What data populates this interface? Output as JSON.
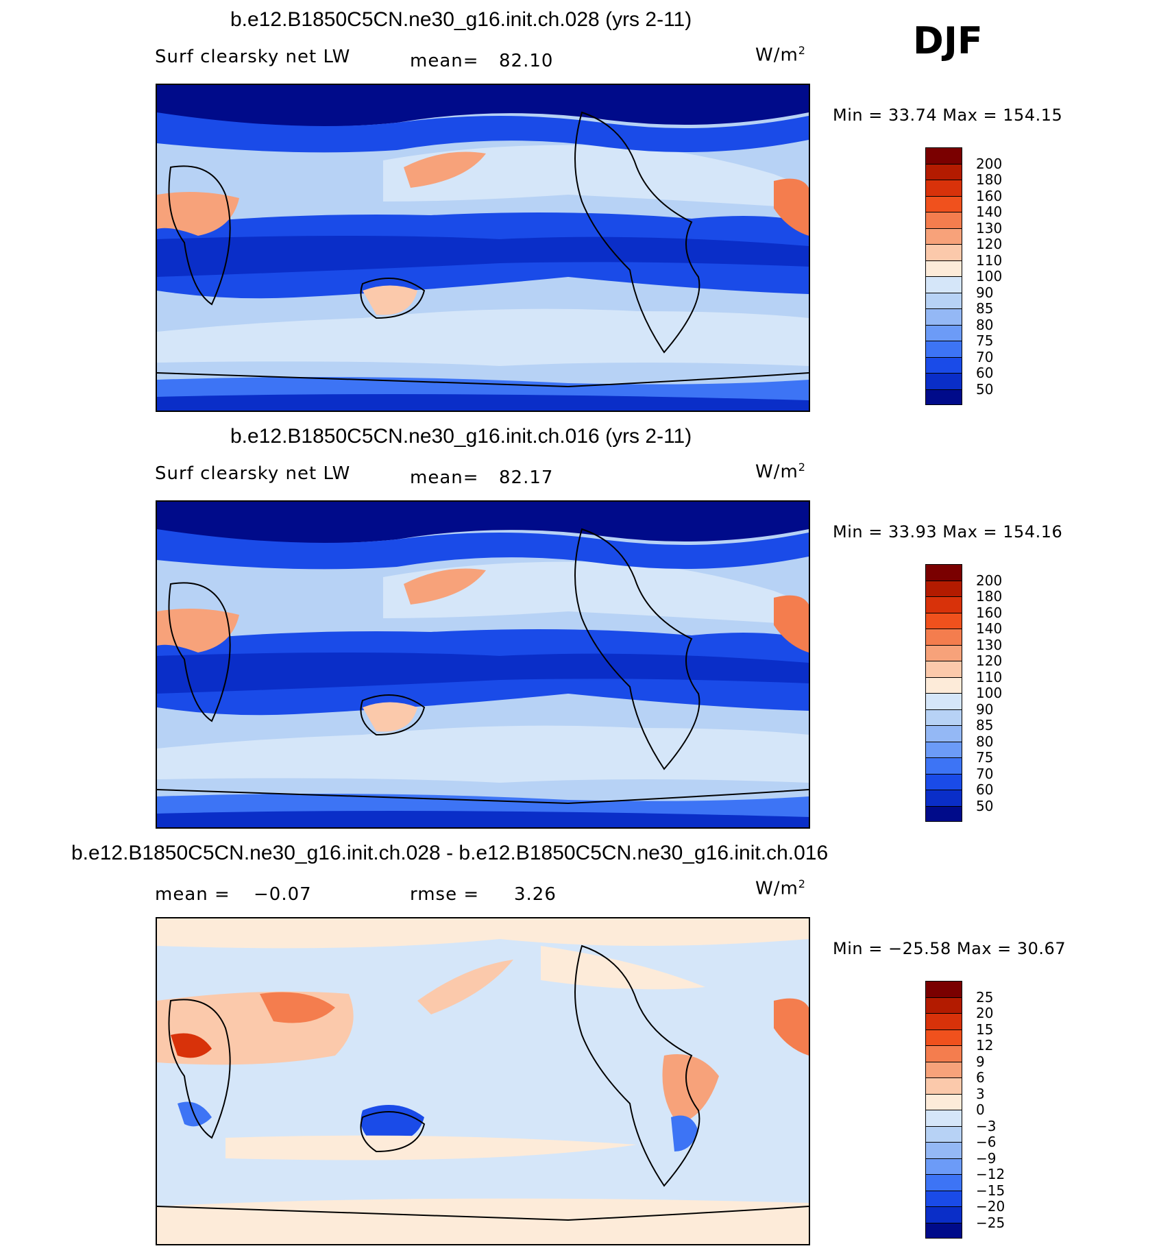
{
  "season": "DJF",
  "units_label": "W/m",
  "units_exp": "2",
  "panels": [
    {
      "title": "b.e12.B1850C5CN.ne30_g16.init.ch.028 (yrs 2-11)",
      "variable": "Surf clearsky net LW",
      "stat_label": "mean=",
      "stat_value": "82.10",
      "minmax": "Min =   33.74 Max = 154.15"
    },
    {
      "title": "b.e12.B1850C5CN.ne30_g16.init.ch.016 (yrs 2-11)",
      "variable": "Surf clearsky net LW",
      "stat_label": "mean=",
      "stat_value": "82.17",
      "minmax": "Min =   33.93 Max = 154.16"
    },
    {
      "title": "b.e12.B1850C5CN.ne30_g16.init.ch.028 - b.e12.B1850C5CN.ne30_g16.init.ch.016",
      "variable": "mean =",
      "variable_value": "−0.07",
      "stat_label": "rmse =",
      "stat_value": "3.26",
      "minmax": "Min = −25.58 Max =   30.67"
    }
  ],
  "chart_data": [
    {
      "type": "heatmap",
      "title": "b.e12.B1850C5CN.ne30_g16.init.ch.028 (yrs 2-11)",
      "field": "Surf clearsky net LW",
      "units": "W/m2",
      "mean": 82.1,
      "min": 33.74,
      "max": 154.15,
      "colorbar_levels": [
        "200",
        "180",
        "160",
        "140",
        "130",
        "120",
        "110",
        "100",
        "90",
        "85",
        "80",
        "75",
        "70",
        "60",
        "50"
      ],
      "colorbar_colors": [
        "#7a0000",
        "#b31b00",
        "#d8320a",
        "#f0511d",
        "#f47d4e",
        "#f7a27a",
        "#fbc9ab",
        "#fdebd9",
        "#d5e6f9",
        "#b7d2f5",
        "#94b8f5",
        "#6c9bf7",
        "#3d74f5",
        "#1a4be8",
        "#0a2ec8",
        "#000b8a"
      ]
    },
    {
      "type": "heatmap",
      "title": "b.e12.B1850C5CN.ne30_g16.init.ch.016 (yrs 2-11)",
      "field": "Surf clearsky net LW",
      "units": "W/m2",
      "mean": 82.17,
      "min": 33.93,
      "max": 154.16,
      "colorbar_levels": [
        "200",
        "180",
        "160",
        "140",
        "130",
        "120",
        "110",
        "100",
        "90",
        "85",
        "80",
        "75",
        "70",
        "60",
        "50"
      ],
      "colorbar_colors": [
        "#7a0000",
        "#b31b00",
        "#d8320a",
        "#f0511d",
        "#f47d4e",
        "#f7a27a",
        "#fbc9ab",
        "#fdebd9",
        "#d5e6f9",
        "#b7d2f5",
        "#94b8f5",
        "#6c9bf7",
        "#3d74f5",
        "#1a4be8",
        "#0a2ec8",
        "#000b8a"
      ]
    },
    {
      "type": "heatmap",
      "title": "b.e12.B1850C5CN.ne30_g16.init.ch.028 - b.e12.B1850C5CN.ne30_g16.init.ch.016",
      "field": "difference",
      "units": "W/m2",
      "mean": -0.07,
      "rmse": 3.26,
      "min": -25.58,
      "max": 30.67,
      "colorbar_levels": [
        "25",
        "20",
        "15",
        "12",
        "9",
        "6",
        "3",
        "0",
        "−3",
        "−6",
        "−9",
        "−12",
        "−15",
        "−20",
        "−25"
      ],
      "colorbar_colors": [
        "#7a0000",
        "#b31b00",
        "#d8320a",
        "#f0511d",
        "#f47d4e",
        "#f7a27a",
        "#fbc9ab",
        "#fdebd9",
        "#d5e6f9",
        "#b7d2f5",
        "#94b8f5",
        "#6c9bf7",
        "#3d74f5",
        "#1a4be8",
        "#0a2ec8",
        "#000b8a"
      ]
    }
  ]
}
